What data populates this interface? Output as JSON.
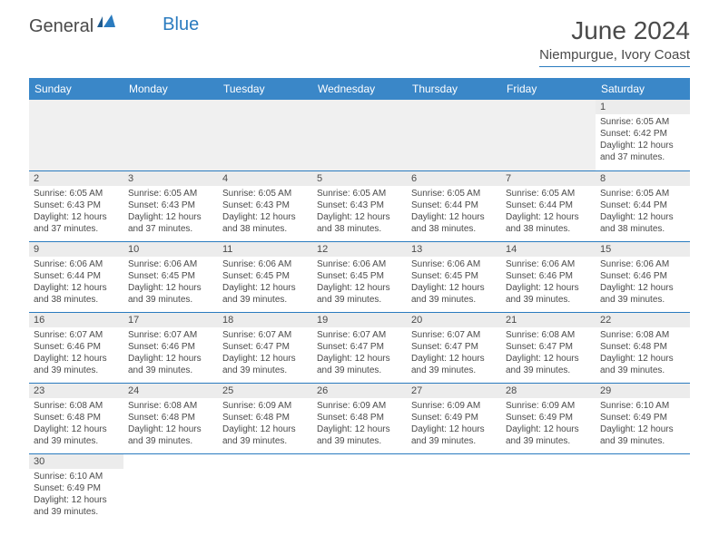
{
  "logo": {
    "part1": "General",
    "part2": "Blue"
  },
  "title": "June 2024",
  "subtitle": "Niempurgue, Ivory Coast",
  "colors": {
    "header_bg": "#3a87c8",
    "accent": "#2a7bbf",
    "blank_bg": "#f0f0f0",
    "daynum_bg": "#ececec",
    "text": "#4a4a4a"
  },
  "dayHeaders": [
    "Sunday",
    "Monday",
    "Tuesday",
    "Wednesday",
    "Thursday",
    "Friday",
    "Saturday"
  ],
  "weeks": [
    [
      null,
      null,
      null,
      null,
      null,
      null,
      {
        "n": "1",
        "sr": "6:05 AM",
        "ss": "6:42 PM",
        "dl": "12 hours and 37 minutes."
      }
    ],
    [
      {
        "n": "2",
        "sr": "6:05 AM",
        "ss": "6:43 PM",
        "dl": "12 hours and 37 minutes."
      },
      {
        "n": "3",
        "sr": "6:05 AM",
        "ss": "6:43 PM",
        "dl": "12 hours and 37 minutes."
      },
      {
        "n": "4",
        "sr": "6:05 AM",
        "ss": "6:43 PM",
        "dl": "12 hours and 38 minutes."
      },
      {
        "n": "5",
        "sr": "6:05 AM",
        "ss": "6:43 PM",
        "dl": "12 hours and 38 minutes."
      },
      {
        "n": "6",
        "sr": "6:05 AM",
        "ss": "6:44 PM",
        "dl": "12 hours and 38 minutes."
      },
      {
        "n": "7",
        "sr": "6:05 AM",
        "ss": "6:44 PM",
        "dl": "12 hours and 38 minutes."
      },
      {
        "n": "8",
        "sr": "6:05 AM",
        "ss": "6:44 PM",
        "dl": "12 hours and 38 minutes."
      }
    ],
    [
      {
        "n": "9",
        "sr": "6:06 AM",
        "ss": "6:44 PM",
        "dl": "12 hours and 38 minutes."
      },
      {
        "n": "10",
        "sr": "6:06 AM",
        "ss": "6:45 PM",
        "dl": "12 hours and 39 minutes."
      },
      {
        "n": "11",
        "sr": "6:06 AM",
        "ss": "6:45 PM",
        "dl": "12 hours and 39 minutes."
      },
      {
        "n": "12",
        "sr": "6:06 AM",
        "ss": "6:45 PM",
        "dl": "12 hours and 39 minutes."
      },
      {
        "n": "13",
        "sr": "6:06 AM",
        "ss": "6:45 PM",
        "dl": "12 hours and 39 minutes."
      },
      {
        "n": "14",
        "sr": "6:06 AM",
        "ss": "6:46 PM",
        "dl": "12 hours and 39 minutes."
      },
      {
        "n": "15",
        "sr": "6:06 AM",
        "ss": "6:46 PM",
        "dl": "12 hours and 39 minutes."
      }
    ],
    [
      {
        "n": "16",
        "sr": "6:07 AM",
        "ss": "6:46 PM",
        "dl": "12 hours and 39 minutes."
      },
      {
        "n": "17",
        "sr": "6:07 AM",
        "ss": "6:46 PM",
        "dl": "12 hours and 39 minutes."
      },
      {
        "n": "18",
        "sr": "6:07 AM",
        "ss": "6:47 PM",
        "dl": "12 hours and 39 minutes."
      },
      {
        "n": "19",
        "sr": "6:07 AM",
        "ss": "6:47 PM",
        "dl": "12 hours and 39 minutes."
      },
      {
        "n": "20",
        "sr": "6:07 AM",
        "ss": "6:47 PM",
        "dl": "12 hours and 39 minutes."
      },
      {
        "n": "21",
        "sr": "6:08 AM",
        "ss": "6:47 PM",
        "dl": "12 hours and 39 minutes."
      },
      {
        "n": "22",
        "sr": "6:08 AM",
        "ss": "6:48 PM",
        "dl": "12 hours and 39 minutes."
      }
    ],
    [
      {
        "n": "23",
        "sr": "6:08 AM",
        "ss": "6:48 PM",
        "dl": "12 hours and 39 minutes."
      },
      {
        "n": "24",
        "sr": "6:08 AM",
        "ss": "6:48 PM",
        "dl": "12 hours and 39 minutes."
      },
      {
        "n": "25",
        "sr": "6:09 AM",
        "ss": "6:48 PM",
        "dl": "12 hours and 39 minutes."
      },
      {
        "n": "26",
        "sr": "6:09 AM",
        "ss": "6:48 PM",
        "dl": "12 hours and 39 minutes."
      },
      {
        "n": "27",
        "sr": "6:09 AM",
        "ss": "6:49 PM",
        "dl": "12 hours and 39 minutes."
      },
      {
        "n": "28",
        "sr": "6:09 AM",
        "ss": "6:49 PM",
        "dl": "12 hours and 39 minutes."
      },
      {
        "n": "29",
        "sr": "6:10 AM",
        "ss": "6:49 PM",
        "dl": "12 hours and 39 minutes."
      }
    ],
    [
      {
        "n": "30",
        "sr": "6:10 AM",
        "ss": "6:49 PM",
        "dl": "12 hours and 39 minutes."
      },
      null,
      null,
      null,
      null,
      null,
      null
    ]
  ],
  "labels": {
    "sunrise": "Sunrise:",
    "sunset": "Sunset:",
    "daylight": "Daylight:"
  }
}
